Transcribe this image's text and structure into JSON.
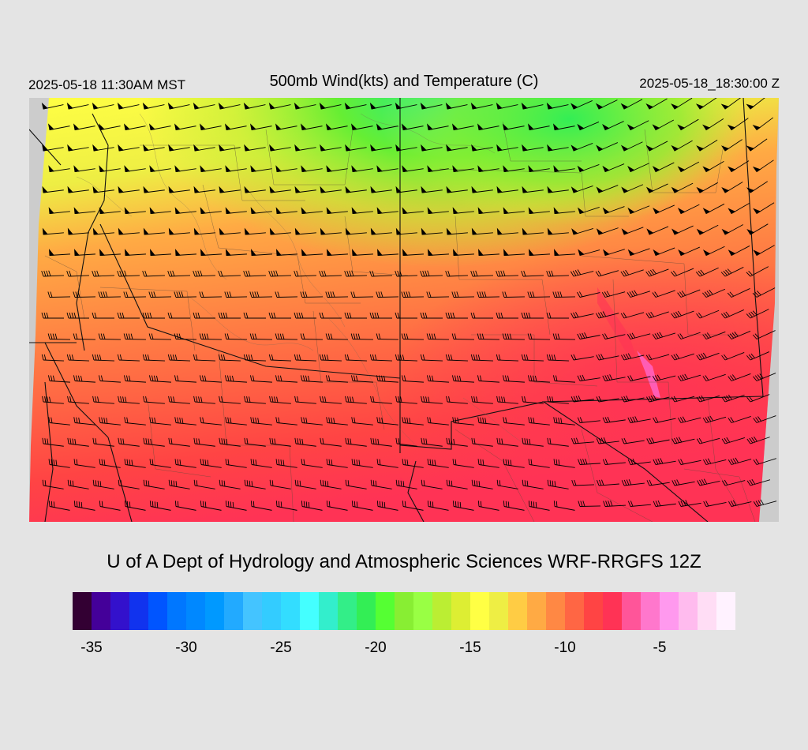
{
  "header": {
    "local_time": "2025-05-18 11:30AM MST",
    "title": "500mb Wind(kts) and Temperature (C)",
    "utc_time": "2025-05-18_18:30:00 Z"
  },
  "credit": "U of A Dept of Hydrology and Atmospheric Sciences WRF-RRGFS 12Z",
  "colorbar": {
    "colors": [
      "#330033",
      "#440099",
      "#3311cc",
      "#1133ee",
      "#0055ff",
      "#0077ff",
      "#0088ff",
      "#0099ff",
      "#22aaff",
      "#44c4ff",
      "#33ccff",
      "#33ddff",
      "#44ffff",
      "#33eecc",
      "#33ee88",
      "#33ee55",
      "#55ff33",
      "#88ee33",
      "#99ff44",
      "#bbee33",
      "#ddee33",
      "#ffff44",
      "#eeee44",
      "#ffcc44",
      "#ffaa44",
      "#ff8844",
      "#ff6644",
      "#ff4444",
      "#ff3355",
      "#ff5599",
      "#ff77cc",
      "#ff99ee",
      "#ffbbee",
      "#ffddf5",
      "#fff2ff"
    ],
    "ticks": [
      {
        "label": "-35",
        "value": -35
      },
      {
        "label": "-30",
        "value": -30
      },
      {
        "label": "-25",
        "value": -25
      },
      {
        "label": "-20",
        "value": -20
      },
      {
        "label": "-15",
        "value": -15
      },
      {
        "label": "-10",
        "value": -10
      },
      {
        "label": "-5",
        "value": -5
      }
    ],
    "range": [
      -36,
      -1
    ]
  },
  "map": {
    "colors": {
      "background": "#cccccc",
      "cold": "#44ee44",
      "cool": "#eeee44",
      "mid": "#ffaa44",
      "warm": "#ff8844",
      "hot": "#ff4444",
      "hotter": "#ff3355",
      "pink": "#ff66cc"
    }
  }
}
